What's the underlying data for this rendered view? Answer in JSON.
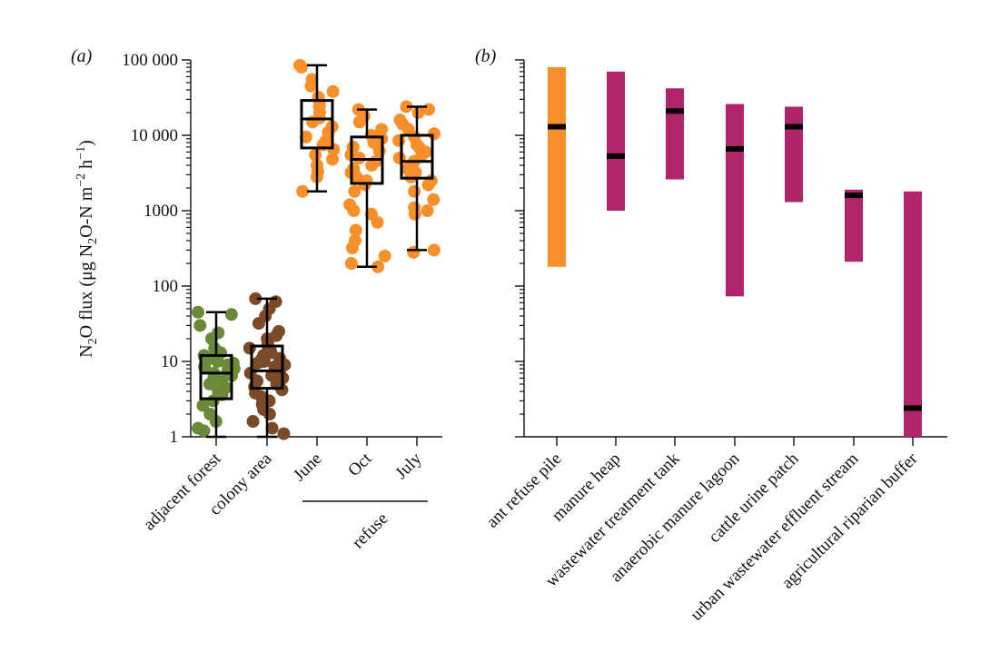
{
  "colors": {
    "forest": "#6a8a3a",
    "colony": "#7b4a26",
    "refuse": "#f7902a",
    "reference": "#b0246a",
    "median": "#000000"
  },
  "chart_data": [
    {
      "panel": "(a)",
      "type": "box-strip",
      "yscale": "log",
      "ylim": [
        1,
        100000
      ],
      "yticks": [
        {
          "value": 1,
          "label": "1"
        },
        {
          "value": 10,
          "label": "10"
        },
        {
          "value": 100,
          "label": "100"
        },
        {
          "value": 1000,
          "label": "1000"
        },
        {
          "value": 10000,
          "label": "10 000"
        },
        {
          "value": 100000,
          "label": "100 000"
        }
      ],
      "ylabel": {
        "prefix": "N",
        "sub1": "2",
        "mid1": "O flux (μg N",
        "sub2": "2",
        "mid2": "O-N m",
        "sup1": "−2",
        "mid3": " h",
        "sup2": "−1",
        "suffix": ")"
      },
      "categories": [
        "adjacent forest",
        "colony area",
        "June",
        "Oct",
        "July"
      ],
      "group_label": "refuse",
      "boxes": [
        {
          "name": "adjacent forest",
          "color_key": "forest",
          "whisker_low": 1,
          "q1": 3.2,
          "median": 7,
          "q3": 12,
          "whisker_high": 45,
          "points": [
            45,
            42,
            30,
            24,
            20,
            15,
            13,
            12,
            11,
            10,
            9.5,
            9,
            8.5,
            8,
            7.5,
            7,
            6.5,
            6,
            5.5,
            5,
            4.5,
            4,
            3.6,
            3,
            2.6,
            2,
            1.6,
            1.3,
            1.2
          ]
        },
        {
          "name": "colony area",
          "color_key": "colony",
          "whisker_low": 1,
          "q1": 4.4,
          "median": 7.5,
          "q3": 16,
          "whisker_high": 68,
          "points": [
            68,
            62,
            50,
            40,
            32,
            25,
            22,
            20,
            18,
            16,
            15,
            14,
            13,
            12,
            11,
            10.5,
            10,
            9.5,
            9,
            8.5,
            8,
            7.5,
            7,
            6.5,
            6,
            5.5,
            5,
            4.6,
            4.2,
            3.8,
            3.4,
            3,
            2.7,
            2.3,
            2,
            1.6,
            1.3,
            1.1
          ]
        },
        {
          "name": "June",
          "color_key": "refuse",
          "whisker_low": 1800,
          "q1": 6800,
          "median": 16500,
          "q3": 29000,
          "whisker_high": 85000,
          "points": [
            85000,
            80000,
            55000,
            45000,
            38000,
            32000,
            28000,
            24000,
            20000,
            17000,
            15000,
            13000,
            11000,
            9500,
            8500,
            7500,
            6500,
            5500,
            4800,
            4000,
            3300,
            2800,
            1800
          ]
        },
        {
          "name": "Oct",
          "color_key": "refuse",
          "whisker_low": 180,
          "q1": 2300,
          "median": 4800,
          "q3": 9500,
          "whisker_high": 22000,
          "points": [
            22000,
            18000,
            15000,
            12000,
            10000,
            9000,
            8000,
            7000,
            6200,
            5500,
            5000,
            4500,
            4000,
            3600,
            3200,
            2800,
            2500,
            2200,
            1800,
            1200,
            1000,
            900,
            700,
            550,
            400,
            320,
            250,
            200,
            180
          ]
        },
        {
          "name": "July",
          "color_key": "refuse",
          "whisker_low": 300,
          "q1": 2700,
          "median": 4500,
          "q3": 10000,
          "whisker_high": 24000,
          "points": [
            24000,
            22000,
            20000,
            16000,
            14000,
            12000,
            10500,
            9500,
            8500,
            7500,
            6800,
            6000,
            5500,
            5000,
            4500,
            4000,
            3600,
            3200,
            2800,
            2500,
            2200,
            1800,
            1400,
            1100,
            1000,
            900,
            300,
            280
          ]
        }
      ]
    },
    {
      "panel": "(b)",
      "type": "range-bar",
      "yscale": "log",
      "ylim": [
        1,
        100000
      ],
      "shared_y_with": "(a)",
      "categories": [
        "ant refuse pile",
        "manure heap",
        "wastewater treatment tank",
        "anaerobic manure lagoon",
        "cattle urine patch",
        "urban wastewater effluent stream",
        "agricultural riparian buffer"
      ],
      "bars": [
        {
          "name": "ant refuse pile",
          "color_key": "refuse",
          "low": 180,
          "high": 80000,
          "median": 13000
        },
        {
          "name": "manure heap",
          "color_key": "reference",
          "low": 1000,
          "high": 70000,
          "median": 5300
        },
        {
          "name": "wastewater treatment tank",
          "color_key": "reference",
          "low": 2600,
          "high": 42000,
          "median": 21000
        },
        {
          "name": "anaerobic manure lagoon",
          "color_key": "reference",
          "low": 73,
          "high": 26000,
          "median": 6600
        },
        {
          "name": "cattle urine patch",
          "color_key": "reference",
          "low": 1300,
          "high": 24000,
          "median": 13000
        },
        {
          "name": "urban wastewater effluent stream",
          "color_key": "reference",
          "low": 210,
          "high": 1900,
          "median": 1600
        },
        {
          "name": "agricultural riparian buffer",
          "color_key": "reference",
          "low": 1,
          "high": 1800,
          "median": 2.4
        }
      ]
    }
  ]
}
